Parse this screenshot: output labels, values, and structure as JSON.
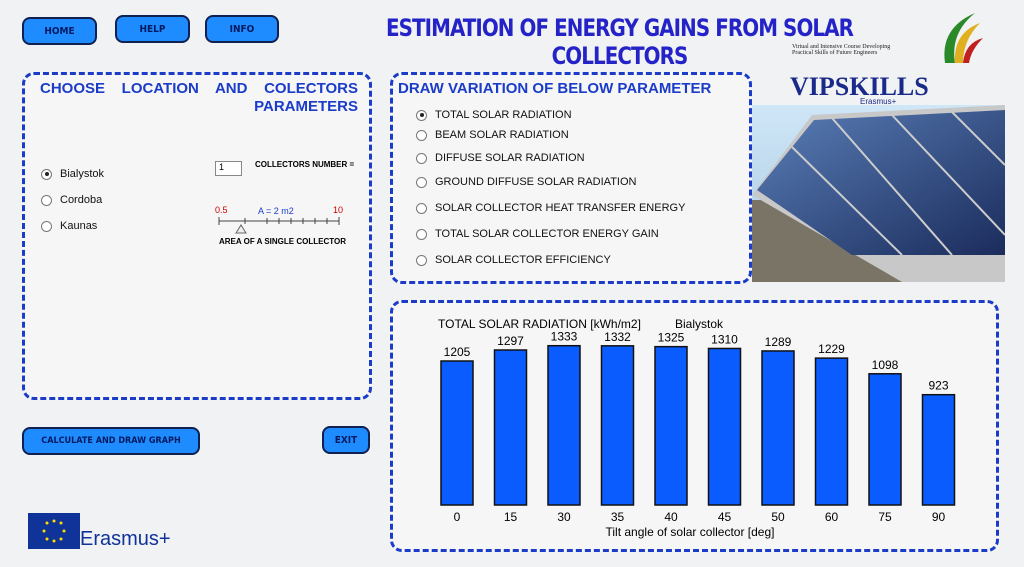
{
  "nav": [
    "HOME",
    "HELP",
    "INFO"
  ],
  "header": {
    "title": "ESTIMATION OF ENERGY GAINS FROM SOLAR COLLECTORS",
    "logo_caption": "Virtual and Intensive Course Developing Practical Skills of Future Engineers",
    "logo_name": "VIPSKILLS",
    "logo_sub": "Erasmus+"
  },
  "location_panel": {
    "heading": "CHOOSE LOCATION AND COLECTORS PARAMETERS",
    "locations": [
      {
        "label": "Bialystok",
        "checked": true
      },
      {
        "label": "Cordoba",
        "checked": false
      },
      {
        "label": "Kaunas",
        "checked": false
      }
    ],
    "collectors_value": "1",
    "collectors_label": "COLLECTORS NUMBER =",
    "slider_min": "0.5",
    "slider_value": "A = 2 m2",
    "slider_max": "10",
    "slider_label": "AREA OF A SINGLE COLLECTOR"
  },
  "parameter_panel": {
    "heading": "DRAW VARIATION OF BELOW PARAMETER",
    "options": [
      {
        "label": "TOTAL SOLAR RADIATION",
        "checked": true
      },
      {
        "label": "BEAM SOLAR RADIATION",
        "checked": false
      },
      {
        "label": "DIFFUSE SOLAR RADIATION",
        "checked": false
      },
      {
        "label": "GROUND DIFFUSE SOLAR RADIATION",
        "checked": false
      },
      {
        "label": "SOLAR COLLECTOR HEAT TRANSFER ENERGY",
        "checked": false
      },
      {
        "label": "TOTAL SOLAR COLLECTOR ENERGY GAIN",
        "checked": false
      },
      {
        "label": "SOLAR COLLECTOR EFFICIENCY",
        "checked": false
      }
    ]
  },
  "buttons": {
    "calculate": "CALCULATE AND DRAW GRAPH",
    "exit": "EXIT"
  },
  "footer": {
    "erasmus": "Erasmus+"
  },
  "chart_data": {
    "type": "bar",
    "title": "TOTAL SOLAR RADIATION [kWh/m2]",
    "subtitle": "Bialystok",
    "x_label": "Tilt angle of solar collector [deg]",
    "categories": [
      "0",
      "15",
      "30",
      "35",
      "40",
      "45",
      "50",
      "60",
      "75",
      "90"
    ],
    "values": [
      1205,
      1297,
      1333,
      1332,
      1325,
      1310,
      1289,
      1229,
      1098,
      923
    ],
    "color": "#0a5cff"
  }
}
